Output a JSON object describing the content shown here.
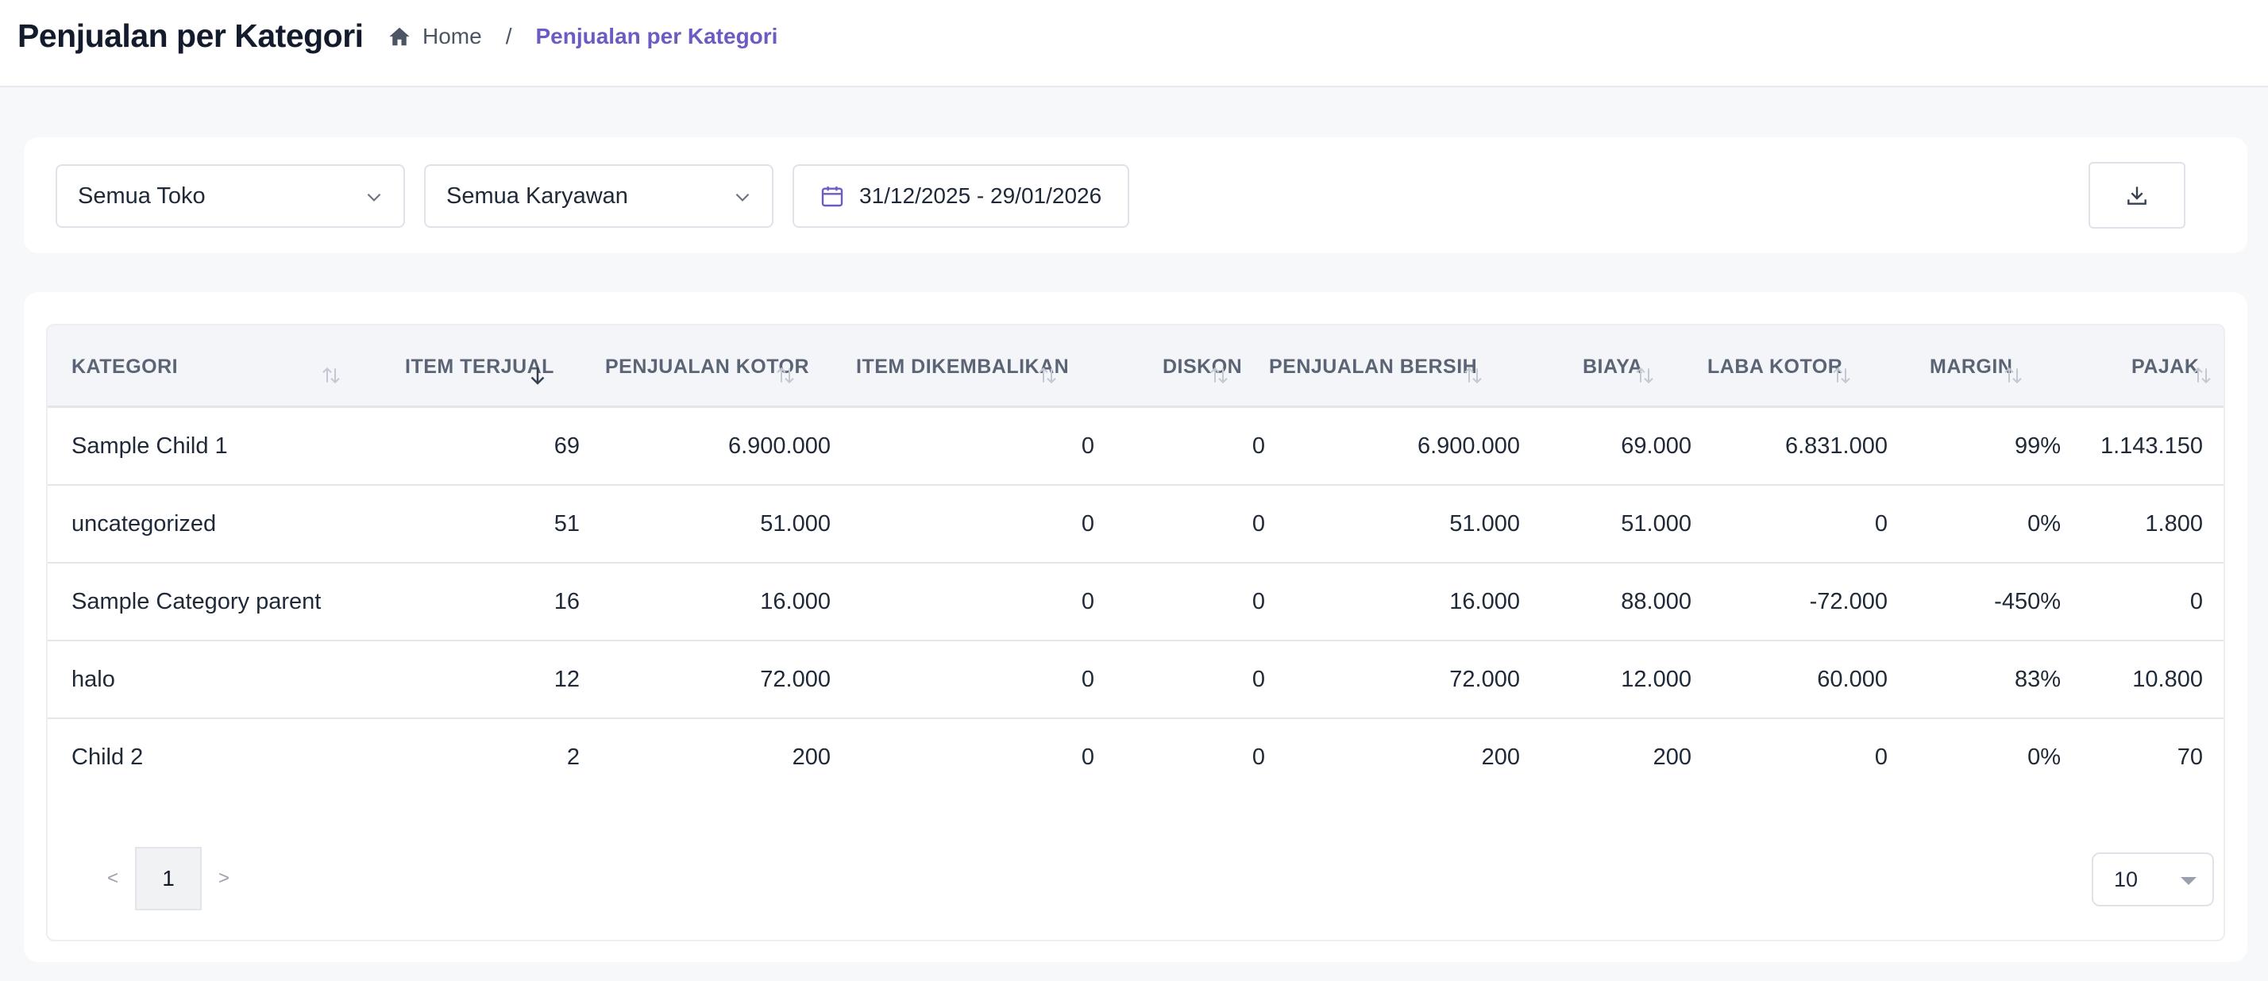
{
  "header": {
    "title": "Penjualan per Kategori",
    "breadcrumb": {
      "home": "Home",
      "separator": "/",
      "current": "Penjualan per Kategori"
    }
  },
  "filters": {
    "store": "Semua Toko",
    "employee": "Semua Karyawan",
    "date_range": "31/12/2025 - 29/01/2026"
  },
  "table": {
    "columns": [
      "KATEGORI",
      "ITEM TERJUAL",
      "PENJUALAN KOTOR",
      "ITEM DIKEMBALIKAN",
      "DISKON",
      "PENJUALAN BERSIH",
      "BIAYA",
      "LABA KOTOR",
      "MARGIN",
      "PAJAK"
    ],
    "rows": [
      [
        "Sample Child 1",
        "69",
        "6.900.000",
        "0",
        "0",
        "6.900.000",
        "69.000",
        "6.831.000",
        "99%",
        "1.143.150"
      ],
      [
        "uncategorized",
        "51",
        "51.000",
        "0",
        "0",
        "51.000",
        "51.000",
        "0",
        "0%",
        "1.800"
      ],
      [
        "Sample Category parent",
        "16",
        "16.000",
        "0",
        "0",
        "16.000",
        "88.000",
        "-72.000",
        "-450%",
        "0"
      ],
      [
        "halo",
        "12",
        "72.000",
        "0",
        "0",
        "72.000",
        "12.000",
        "60.000",
        "83%",
        "10.800"
      ],
      [
        "Child 2",
        "2",
        "200",
        "0",
        "0",
        "200",
        "200",
        "0",
        "0%",
        "70"
      ]
    ]
  },
  "pagination": {
    "prev": "<",
    "current": "1",
    "next": ">",
    "page_size": "10"
  },
  "colors": {
    "accent": "#6b5cc4",
    "header_text": "#5b6475",
    "border": "#e3e5ea"
  }
}
